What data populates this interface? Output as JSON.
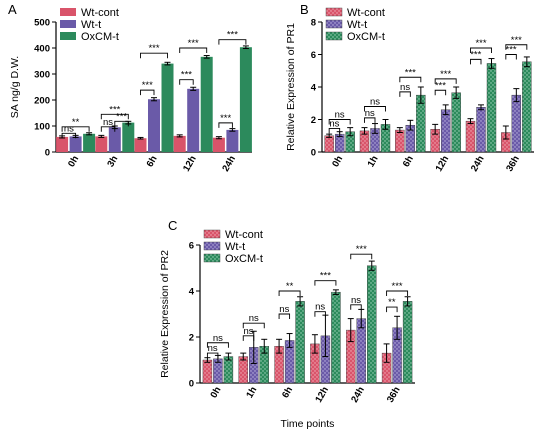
{
  "colors": {
    "Wt-cont": "#d9546a",
    "Wt-t": "#6a5aa8",
    "OxCM-t": "#2c8a5c",
    "OxCM-t_light": "#3a9a6a"
  },
  "chart_data": [
    {
      "panel_label": "A",
      "type": "bar",
      "ylabel": "SA ng/g D.W.",
      "xlabel": "",
      "ylim": [
        0,
        500
      ],
      "yticks": [
        "0",
        "100",
        "200",
        "300",
        "400",
        "500"
      ],
      "categories": [
        "0h",
        "3h",
        "6h",
        "12h",
        "24h"
      ],
      "legend": [
        "Wt-cont",
        "Wt-t",
        "OxCM-t"
      ],
      "series": [
        {
          "name": "Wt-cont",
          "values": [
            58,
            60,
            53,
            62,
            55
          ],
          "errors": [
            4,
            4,
            3,
            4,
            4
          ]
        },
        {
          "name": "Wt-t",
          "values": [
            60,
            95,
            203,
            243,
            85
          ],
          "errors": [
            4,
            5,
            6,
            6,
            5
          ]
        },
        {
          "name": "OxCM-t",
          "values": [
            70,
            113,
            340,
            366,
            403
          ],
          "errors": [
            4,
            5,
            5,
            5,
            5
          ]
        }
      ],
      "significance": [
        {
          "cat": 0,
          "pair": [
            0,
            2
          ],
          "label": "**",
          "y": 97,
          "level": "upper"
        },
        {
          "cat": 0,
          "pair": [
            0,
            1
          ],
          "label": "ns",
          "y": 72,
          "level": "lower"
        },
        {
          "cat": 1,
          "pair": [
            0,
            2
          ],
          "label": "***",
          "y": 145,
          "level": "upper"
        },
        {
          "cat": 1,
          "pair": [
            1,
            2
          ],
          "label": "***",
          "y": 118,
          "level": "lower"
        },
        {
          "cat": 1,
          "pair": [
            0,
            1
          ],
          "label": "ns",
          "y": 97,
          "level": "lower2"
        },
        {
          "cat": 2,
          "pair": [
            0,
            2
          ],
          "label": "***",
          "y": 380,
          "level": "upper"
        },
        {
          "cat": 2,
          "pair": [
            0,
            1
          ],
          "label": "***",
          "y": 238,
          "level": "lower"
        },
        {
          "cat": 3,
          "pair": [
            0,
            2
          ],
          "label": "***",
          "y": 400,
          "level": "upper"
        },
        {
          "cat": 3,
          "pair": [
            0,
            1
          ],
          "label": "***",
          "y": 278,
          "level": "lower"
        },
        {
          "cat": 4,
          "pair": [
            0,
            2
          ],
          "label": "***",
          "y": 432,
          "level": "upper"
        },
        {
          "cat": 4,
          "pair": [
            0,
            1
          ],
          "label": "***",
          "y": 112,
          "level": "lower"
        }
      ]
    },
    {
      "panel_label": "B",
      "type": "bar",
      "ylabel": "Relative Expression of PR1",
      "xlabel": "",
      "ylim": [
        0,
        8
      ],
      "yticks": [
        "0",
        "2",
        "4",
        "6",
        "8"
      ],
      "categories": [
        "0h",
        "1h",
        "6h",
        "12h",
        "24h",
        "36h"
      ],
      "legend": [
        "Wt-cont",
        "Wt-t",
        "OxCM-t"
      ],
      "series": [
        {
          "name": "Wt-cont",
          "values": [
            1.0,
            1.3,
            1.35,
            1.4,
            1.9,
            1.2
          ],
          "errors": [
            0.1,
            0.2,
            0.15,
            0.3,
            0.15,
            0.4
          ]
        },
        {
          "name": "Wt-t",
          "values": [
            1.1,
            1.45,
            1.65,
            2.6,
            2.75,
            3.5
          ],
          "errors": [
            0.15,
            0.3,
            0.3,
            0.3,
            0.15,
            0.4
          ]
        },
        {
          "name": "OxCM-t",
          "values": [
            1.25,
            1.7,
            3.5,
            3.65,
            5.45,
            5.55
          ],
          "errors": [
            0.25,
            0.3,
            0.5,
            0.35,
            0.3,
            0.3
          ]
        }
      ],
      "significance": [
        {
          "cat": 0,
          "pair": [
            0,
            2
          ],
          "label": "ns",
          "y": 2.0
        },
        {
          "cat": 0,
          "pair": [
            0,
            1
          ],
          "label": "ns",
          "y": 1.45
        },
        {
          "cat": 1,
          "pair": [
            0,
            2
          ],
          "label": "ns",
          "y": 2.8
        },
        {
          "cat": 1,
          "pair": [
            0,
            1
          ],
          "label": "ns",
          "y": 2.1
        },
        {
          "cat": 2,
          "pair": [
            0,
            2
          ],
          "label": "***",
          "y": 4.6
        },
        {
          "cat": 2,
          "pair": [
            0,
            1
          ],
          "label": "ns",
          "y": 3.7
        },
        {
          "cat": 3,
          "pair": [
            0,
            2
          ],
          "label": "***",
          "y": 4.5
        },
        {
          "cat": 3,
          "pair": [
            0,
            1
          ],
          "label": "***",
          "y": 3.8
        },
        {
          "cat": 4,
          "pair": [
            0,
            2
          ],
          "label": "***",
          "y": 6.4
        },
        {
          "cat": 4,
          "pair": [
            0,
            1
          ],
          "label": "***",
          "y": 5.7
        },
        {
          "cat": 5,
          "pair": [
            0,
            2
          ],
          "label": "***",
          "y": 6.6
        },
        {
          "cat": 5,
          "pair": [
            0,
            1
          ],
          "label": "***",
          "y": 6.0
        }
      ]
    },
    {
      "panel_label": "C",
      "type": "bar",
      "ylabel": "Relative Expression of PR2",
      "xlabel": "Time points",
      "ylim": [
        0,
        6
      ],
      "yticks": [
        "0",
        "2",
        "4",
        "6"
      ],
      "categories": [
        "0h",
        "1h",
        "6h",
        "12h",
        "24h",
        "36h"
      ],
      "legend": [
        "Wt-cont",
        "Wt-t",
        "OxCM-t"
      ],
      "series": [
        {
          "name": "Wt-cont",
          "values": [
            1.0,
            1.15,
            1.6,
            1.7,
            2.3,
            1.3
          ],
          "errors": [
            0.1,
            0.15,
            0.3,
            0.4,
            0.5,
            0.4
          ]
        },
        {
          "name": "Wt-t",
          "values": [
            1.05,
            1.55,
            1.85,
            2.05,
            2.8,
            2.4
          ],
          "errors": [
            0.15,
            0.7,
            0.3,
            0.9,
            0.4,
            0.5
          ]
        },
        {
          "name": "OxCM-t",
          "values": [
            1.15,
            1.6,
            3.55,
            3.95,
            5.1,
            3.55
          ],
          "errors": [
            0.15,
            0.3,
            0.2,
            0.1,
            0.2,
            0.2
          ]
        }
      ],
      "significance": [
        {
          "cat": 0,
          "pair": [
            0,
            2
          ],
          "label": "ns",
          "y": 1.75
        },
        {
          "cat": 0,
          "pair": [
            0,
            1
          ],
          "label": "ns",
          "y": 1.3
        },
        {
          "cat": 1,
          "pair": [
            0,
            2
          ],
          "label": "ns",
          "y": 2.6
        },
        {
          "cat": 1,
          "pair": [
            0,
            1
          ],
          "label": "ns",
          "y": 2.05
        },
        {
          "cat": 2,
          "pair": [
            0,
            2
          ],
          "label": "**",
          "y": 4.0
        },
        {
          "cat": 2,
          "pair": [
            0,
            1
          ],
          "label": "ns",
          "y": 3.0
        },
        {
          "cat": 3,
          "pair": [
            0,
            2
          ],
          "label": "***",
          "y": 4.45
        },
        {
          "cat": 3,
          "pair": [
            0,
            1
          ],
          "label": "ns",
          "y": 3.1
        },
        {
          "cat": 4,
          "pair": [
            0,
            2
          ],
          "label": "***",
          "y": 5.6
        },
        {
          "cat": 4,
          "pair": [
            0,
            1
          ],
          "label": "ns",
          "y": 3.4
        },
        {
          "cat": 5,
          "pair": [
            0,
            2
          ],
          "label": "***",
          "y": 4.0
        },
        {
          "cat": 5,
          "pair": [
            0,
            1
          ],
          "label": "**",
          "y": 3.3
        }
      ]
    }
  ]
}
